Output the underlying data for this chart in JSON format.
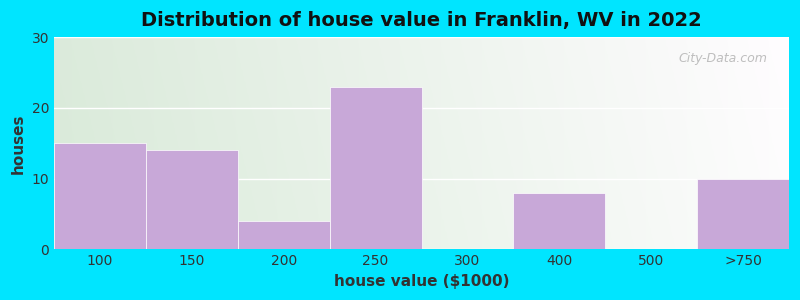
{
  "title": "Distribution of house value in Franklin, WV in 2022",
  "xlabel": "house value ($1000)",
  "ylabel": "houses",
  "categories": [
    "100",
    "150",
    "200",
    "250",
    "300",
    "400",
    "500",
    ">750"
  ],
  "values": [
    15,
    14,
    4,
    23,
    0,
    8,
    0,
    10
  ],
  "bar_color": "#c8a8d8",
  "bar_edgecolor": "#ffffff",
  "background_outer": "#00e5ff",
  "background_grad_left": "#d8efd0",
  "background_grad_right": "#e8f4f0",
  "ylim": [
    0,
    30
  ],
  "yticks": [
    0,
    10,
    20,
    30
  ],
  "title_fontsize": 14,
  "axis_label_fontsize": 11,
  "tick_fontsize": 10,
  "watermark": "City-Data.com"
}
